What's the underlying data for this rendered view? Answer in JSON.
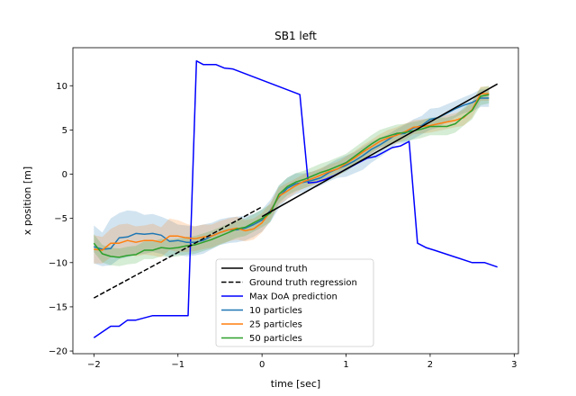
{
  "chart_data": {
    "type": "line",
    "title": "SB1 left",
    "xlabel": "time [sec]",
    "ylabel": "x position [m]",
    "xlim": [
      -2.25,
      3.05
    ],
    "ylim": [
      -20.3,
      14.3
    ],
    "xticks": [
      -2,
      -1,
      0,
      1,
      2,
      3
    ],
    "yticks": [
      -20,
      -15,
      -10,
      -5,
      0,
      5,
      10
    ],
    "grid": false,
    "legend_position": "bottom-center",
    "series": [
      {
        "name": "Ground truth",
        "color": "#000000",
        "style": "solid",
        "x": [
          0.0,
          2.8
        ],
        "y": [
          -4.8,
          10.2
        ]
      },
      {
        "name": "Ground truth regression",
        "color": "#000000",
        "style": "dashed",
        "x": [
          -2.0,
          0.0
        ],
        "y": [
          -14.0,
          -3.7
        ]
      },
      {
        "name": "Max DoA prediction",
        "color": "#0000ff",
        "style": "solid",
        "x": [
          -2.0,
          -1.8,
          -1.7,
          -1.6,
          -1.5,
          -1.3,
          -1.2,
          -1.0,
          -0.88,
          -0.78,
          -0.7,
          -0.55,
          -0.45,
          -0.35,
          0.45,
          0.55,
          0.65,
          0.75,
          0.85,
          0.95,
          1.05,
          1.15,
          1.25,
          1.35,
          1.45,
          1.55,
          1.65,
          1.75,
          1.85,
          1.95,
          2.05,
          2.5,
          2.65,
          2.8
        ],
        "y": [
          -18.5,
          -17.2,
          -17.2,
          -16.5,
          -16.5,
          -16.0,
          -16.0,
          -16.0,
          -16.0,
          12.8,
          12.4,
          12.4,
          12.0,
          11.9,
          9.0,
          -1.0,
          -0.9,
          -0.6,
          -0.2,
          0.3,
          0.8,
          1.3,
          1.8,
          2.0,
          2.5,
          3.0,
          3.2,
          3.7,
          -7.8,
          -8.3,
          -8.6,
          -10.0,
          -10.0,
          -10.5
        ]
      },
      {
        "name": "10 particles",
        "color": "#1f77b4",
        "style": "solid",
        "x": [
          -2.0,
          -1.9,
          -1.8,
          -1.7,
          -1.6,
          -1.5,
          -1.4,
          -1.3,
          -1.2,
          -1.1,
          -1.0,
          -0.9,
          -0.8,
          -0.7,
          -0.6,
          -0.5,
          -0.4,
          -0.3,
          -0.2,
          -0.1,
          0.0,
          0.1,
          0.2,
          0.3,
          0.4,
          0.5,
          0.6,
          0.7,
          0.8,
          0.9,
          1.0,
          1.1,
          1.2,
          1.3,
          1.4,
          1.5,
          1.6,
          1.7,
          1.8,
          1.9,
          2.0,
          2.1,
          2.2,
          2.3,
          2.4,
          2.5,
          2.6,
          2.7
        ],
        "y": [
          -8.2,
          -8.5,
          -8.4,
          -7.2,
          -7.1,
          -6.7,
          -6.8,
          -6.7,
          -6.9,
          -7.6,
          -7.5,
          -7.7,
          -7.7,
          -7.5,
          -7.0,
          -6.6,
          -6.3,
          -6.3,
          -6.1,
          -5.7,
          -5.2,
          -4.1,
          -2.6,
          -1.6,
          -1.1,
          -0.9,
          -0.7,
          -0.4,
          0.2,
          0.6,
          1.0,
          1.5,
          2.1,
          2.8,
          3.3,
          3.9,
          4.5,
          4.6,
          5.2,
          5.5,
          6.2,
          6.4,
          6.9,
          7.4,
          7.8,
          8.1,
          8.6,
          8.6
        ]
      },
      {
        "name": "25 particles",
        "color": "#ff7f0e",
        "style": "solid",
        "x": [
          -2.0,
          -1.9,
          -1.8,
          -1.7,
          -1.6,
          -1.5,
          -1.4,
          -1.3,
          -1.2,
          -1.1,
          -1.0,
          -0.9,
          -0.8,
          -0.7,
          -0.6,
          -0.5,
          -0.4,
          -0.3,
          -0.2,
          -0.1,
          0.0,
          0.1,
          0.2,
          0.3,
          0.4,
          0.5,
          0.6,
          0.7,
          0.8,
          0.9,
          1.0,
          1.1,
          1.2,
          1.3,
          1.4,
          1.5,
          1.6,
          1.7,
          1.8,
          1.9,
          2.0,
          2.1,
          2.2,
          2.3,
          2.4,
          2.5,
          2.6,
          2.7
        ],
        "y": [
          -8.5,
          -8.6,
          -7.8,
          -7.8,
          -7.5,
          -7.7,
          -7.5,
          -7.5,
          -7.7,
          -7.0,
          -7.0,
          -7.2,
          -7.3,
          -7.1,
          -7.0,
          -6.6,
          -6.3,
          -6.1,
          -6.4,
          -6.2,
          -5.5,
          -4.2,
          -2.5,
          -1.9,
          -1.3,
          -0.8,
          -0.5,
          -0.1,
          0.3,
          0.6,
          1.2,
          1.8,
          2.5,
          3.1,
          3.7,
          4.1,
          4.4,
          4.8,
          5.3,
          5.4,
          5.5,
          5.7,
          5.9,
          6.1,
          6.4,
          7.3,
          9.1,
          9.1
        ]
      },
      {
        "name": "50 particles",
        "color": "#2ca02c",
        "style": "solid",
        "x": [
          -2.0,
          -1.9,
          -1.8,
          -1.7,
          -1.6,
          -1.5,
          -1.4,
          -1.3,
          -1.2,
          -1.1,
          -1.0,
          -0.9,
          -0.8,
          -0.7,
          -0.6,
          -0.5,
          -0.4,
          -0.3,
          -0.2,
          -0.1,
          0.0,
          0.1,
          0.2,
          0.3,
          0.4,
          0.5,
          0.6,
          0.7,
          0.8,
          0.9,
          1.0,
          1.1,
          1.2,
          1.3,
          1.4,
          1.5,
          1.6,
          1.7,
          1.8,
          1.9,
          2.0,
          2.1,
          2.2,
          2.3,
          2.4,
          2.5,
          2.6,
          2.7
        ],
        "y": [
          -7.8,
          -9.0,
          -9.3,
          -9.4,
          -9.2,
          -9.1,
          -8.6,
          -8.6,
          -8.3,
          -8.4,
          -8.3,
          -8.1,
          -8.0,
          -7.7,
          -7.4,
          -7.0,
          -6.6,
          -6.2,
          -6.0,
          -5.5,
          -5.0,
          -4.4,
          -2.3,
          -1.4,
          -0.9,
          -0.6,
          -0.2,
          0.2,
          0.5,
          0.9,
          1.3,
          2.0,
          2.7,
          3.4,
          4.0,
          4.3,
          4.6,
          4.7,
          4.9,
          5.1,
          5.4,
          5.4,
          5.4,
          5.7,
          6.5,
          7.2,
          8.8,
          9.0
        ]
      }
    ],
    "bands": [
      {
        "series": "10 particles",
        "color": "#1f77b4",
        "opacity": 0.2,
        "x": [
          -2.0,
          -1.9,
          -1.8,
          -1.7,
          -1.6,
          -1.5,
          -1.4,
          -1.3,
          -1.2,
          -1.1,
          -1.0,
          -0.9,
          -0.8,
          -0.7,
          -0.6,
          -0.5,
          -0.4,
          -0.3,
          -0.2,
          -0.1,
          0.0,
          0.1,
          0.2,
          0.3,
          0.4,
          0.5,
          0.6,
          0.7,
          0.8,
          0.9,
          1.0,
          1.1,
          1.2,
          1.3,
          1.4,
          1.5,
          1.6,
          1.7,
          1.8,
          1.9,
          2.0,
          2.1,
          2.2,
          2.3,
          2.4,
          2.5,
          2.6,
          2.7
        ],
        "upper": [
          -5.8,
          -6.6,
          -5.0,
          -4.4,
          -4.1,
          -4.2,
          -4.6,
          -4.5,
          -4.8,
          -5.2,
          -5.7,
          -5.8,
          -5.9,
          -5.7,
          -5.5,
          -5.1,
          -4.9,
          -4.8,
          -4.7,
          -4.5,
          -4.0,
          -2.9,
          -1.3,
          -0.4,
          0.1,
          0.1,
          0.3,
          0.6,
          1.2,
          1.7,
          2.1,
          2.5,
          3.1,
          3.7,
          4.1,
          4.5,
          5.1,
          5.6,
          6.2,
          6.6,
          7.4,
          7.5,
          7.9,
          8.3,
          8.7,
          9.1,
          9.6,
          9.6
        ],
        "lower": [
          -10.1,
          -10.4,
          -10.3,
          -9.6,
          -9.4,
          -9.1,
          -9.0,
          -8.8,
          -9.0,
          -9.4,
          -9.1,
          -9.3,
          -9.2,
          -9.0,
          -8.5,
          -8.0,
          -7.8,
          -7.7,
          -7.5,
          -7.1,
          -6.5,
          -5.4,
          -3.9,
          -2.8,
          -2.3,
          -2.0,
          -1.6,
          -1.3,
          -0.8,
          -0.4,
          -0.3,
          0.1,
          0.5,
          1.3,
          1.9,
          2.6,
          3.4,
          3.5,
          4.0,
          4.5,
          5.0,
          5.3,
          5.9,
          6.4,
          6.9,
          7.1,
          7.6,
          7.6
        ]
      },
      {
        "series": "25 particles",
        "color": "#ff7f0e",
        "opacity": 0.2,
        "x": [
          -2.0,
          -1.9,
          -1.8,
          -1.7,
          -1.6,
          -1.5,
          -1.4,
          -1.3,
          -1.2,
          -1.1,
          -1.0,
          -0.9,
          -0.8,
          -0.7,
          -0.6,
          -0.5,
          -0.4,
          -0.3,
          -0.2,
          -0.1,
          0.0,
          0.1,
          0.2,
          0.3,
          0.4,
          0.5,
          0.6,
          0.7,
          0.8,
          0.9,
          1.0,
          1.1,
          1.2,
          1.3,
          1.4,
          1.5,
          1.6,
          1.7,
          1.8,
          1.9,
          2.0,
          2.1,
          2.2,
          2.3,
          2.4,
          2.5,
          2.6,
          2.7
        ],
        "upper": [
          -6.9,
          -7.1,
          -6.2,
          -5.7,
          -5.6,
          -5.9,
          -5.8,
          -5.6,
          -6.0,
          -5.0,
          -5.2,
          -5.6,
          -5.9,
          -5.7,
          -5.7,
          -5.3,
          -5.0,
          -4.8,
          -5.2,
          -5.0,
          -4.4,
          -3.2,
          -1.5,
          -1.0,
          -0.5,
          0.0,
          0.3,
          0.7,
          1.1,
          1.4,
          2.0,
          2.6,
          3.3,
          3.9,
          4.5,
          5.0,
          5.3,
          5.7,
          6.1,
          6.2,
          6.3,
          6.5,
          6.7,
          6.9,
          7.3,
          8.2,
          9.9,
          9.9
        ],
        "lower": [
          -10.1,
          -10.1,
          -9.4,
          -9.4,
          -9.1,
          -9.3,
          -9.1,
          -9.2,
          -9.4,
          -8.6,
          -8.8,
          -8.8,
          -8.7,
          -8.5,
          -8.3,
          -7.9,
          -7.6,
          -7.4,
          -7.6,
          -7.4,
          -6.6,
          -5.2,
          -3.5,
          -2.8,
          -2.1,
          -1.6,
          -1.3,
          -0.9,
          -0.5,
          -0.2,
          0.4,
          1.0,
          1.7,
          2.3,
          2.9,
          3.2,
          3.5,
          3.9,
          4.5,
          4.6,
          4.7,
          4.9,
          5.1,
          5.3,
          5.5,
          6.4,
          8.3,
          8.3
        ]
      },
      {
        "series": "50 particles",
        "color": "#2ca02c",
        "opacity": 0.2,
        "x": [
          -2.0,
          -1.9,
          -1.8,
          -1.7,
          -1.6,
          -1.5,
          -1.4,
          -1.3,
          -1.2,
          -1.1,
          -1.0,
          -0.9,
          -0.8,
          -0.7,
          -0.6,
          -0.5,
          -0.4,
          -0.3,
          -0.2,
          -0.1,
          0.0,
          0.1,
          0.2,
          0.3,
          0.4,
          0.5,
          0.6,
          0.7,
          0.8,
          0.9,
          1.0,
          1.1,
          1.2,
          1.3,
          1.4,
          1.5,
          1.6,
          1.7,
          1.8,
          1.9,
          2.0,
          2.1,
          2.2,
          2.3,
          2.4,
          2.5,
          2.6,
          2.7
        ],
        "upper": [
          -6.8,
          -8.0,
          -8.3,
          -8.4,
          -8.2,
          -8.1,
          -7.6,
          -7.6,
          -7.3,
          -7.4,
          -7.3,
          -7.1,
          -7.0,
          -6.7,
          -6.4,
          -6.0,
          -5.6,
          -5.2,
          -5.0,
          -4.5,
          -4.0,
          -3.4,
          -1.3,
          -0.4,
          0.1,
          0.4,
          0.8,
          1.2,
          1.5,
          1.9,
          2.3,
          3.0,
          3.7,
          4.4,
          5.0,
          5.3,
          5.6,
          5.7,
          5.9,
          6.1,
          6.4,
          6.4,
          6.4,
          6.7,
          7.5,
          8.2,
          9.8,
          10.0
        ],
        "lower": [
          -8.8,
          -10.0,
          -10.3,
          -10.4,
          -10.2,
          -10.1,
          -9.6,
          -9.6,
          -9.3,
          -9.4,
          -9.3,
          -9.1,
          -9.0,
          -8.7,
          -8.4,
          -8.0,
          -7.6,
          -7.2,
          -7.0,
          -6.5,
          -6.0,
          -5.4,
          -3.3,
          -2.4,
          -1.9,
          -1.6,
          -1.2,
          -0.8,
          -0.5,
          -0.1,
          0.3,
          1.0,
          1.7,
          2.4,
          3.0,
          3.3,
          3.6,
          3.7,
          3.9,
          4.1,
          4.4,
          4.4,
          4.4,
          4.7,
          5.5,
          6.2,
          7.8,
          8.0
        ]
      }
    ]
  }
}
